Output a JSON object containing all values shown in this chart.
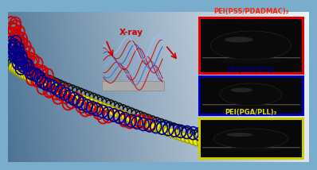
{
  "bg_gradient_left": "#5588aa",
  "bg_gradient_right": "#ddeeff",
  "labels": [
    "PEI(PSS/PDADMAC)₃",
    "PEI(PSS/PEI)₃",
    "PEI(PGA/PLL)₃"
  ],
  "label_colors": [
    "#ff2200",
    "#000077",
    "#dddd00"
  ],
  "box_edge_colors": [
    "#dd0000",
    "#0000bb",
    "#cccc00"
  ],
  "xray_label": "X-ray",
  "xray_color": "#cc0000",
  "red_chain_color": "#cc0000",
  "blue_chain_color": "#000088",
  "black_chain_color": "#111111",
  "yellow_chain_color": "#eeee00",
  "wave_colors": [
    "#cc0000",
    "#4466cc",
    "#cc0000",
    "#88aaff",
    "#cc0000",
    "#3355bb",
    "#cc0000",
    "#aabbff"
  ],
  "substrate_color": "#aaaaaa"
}
